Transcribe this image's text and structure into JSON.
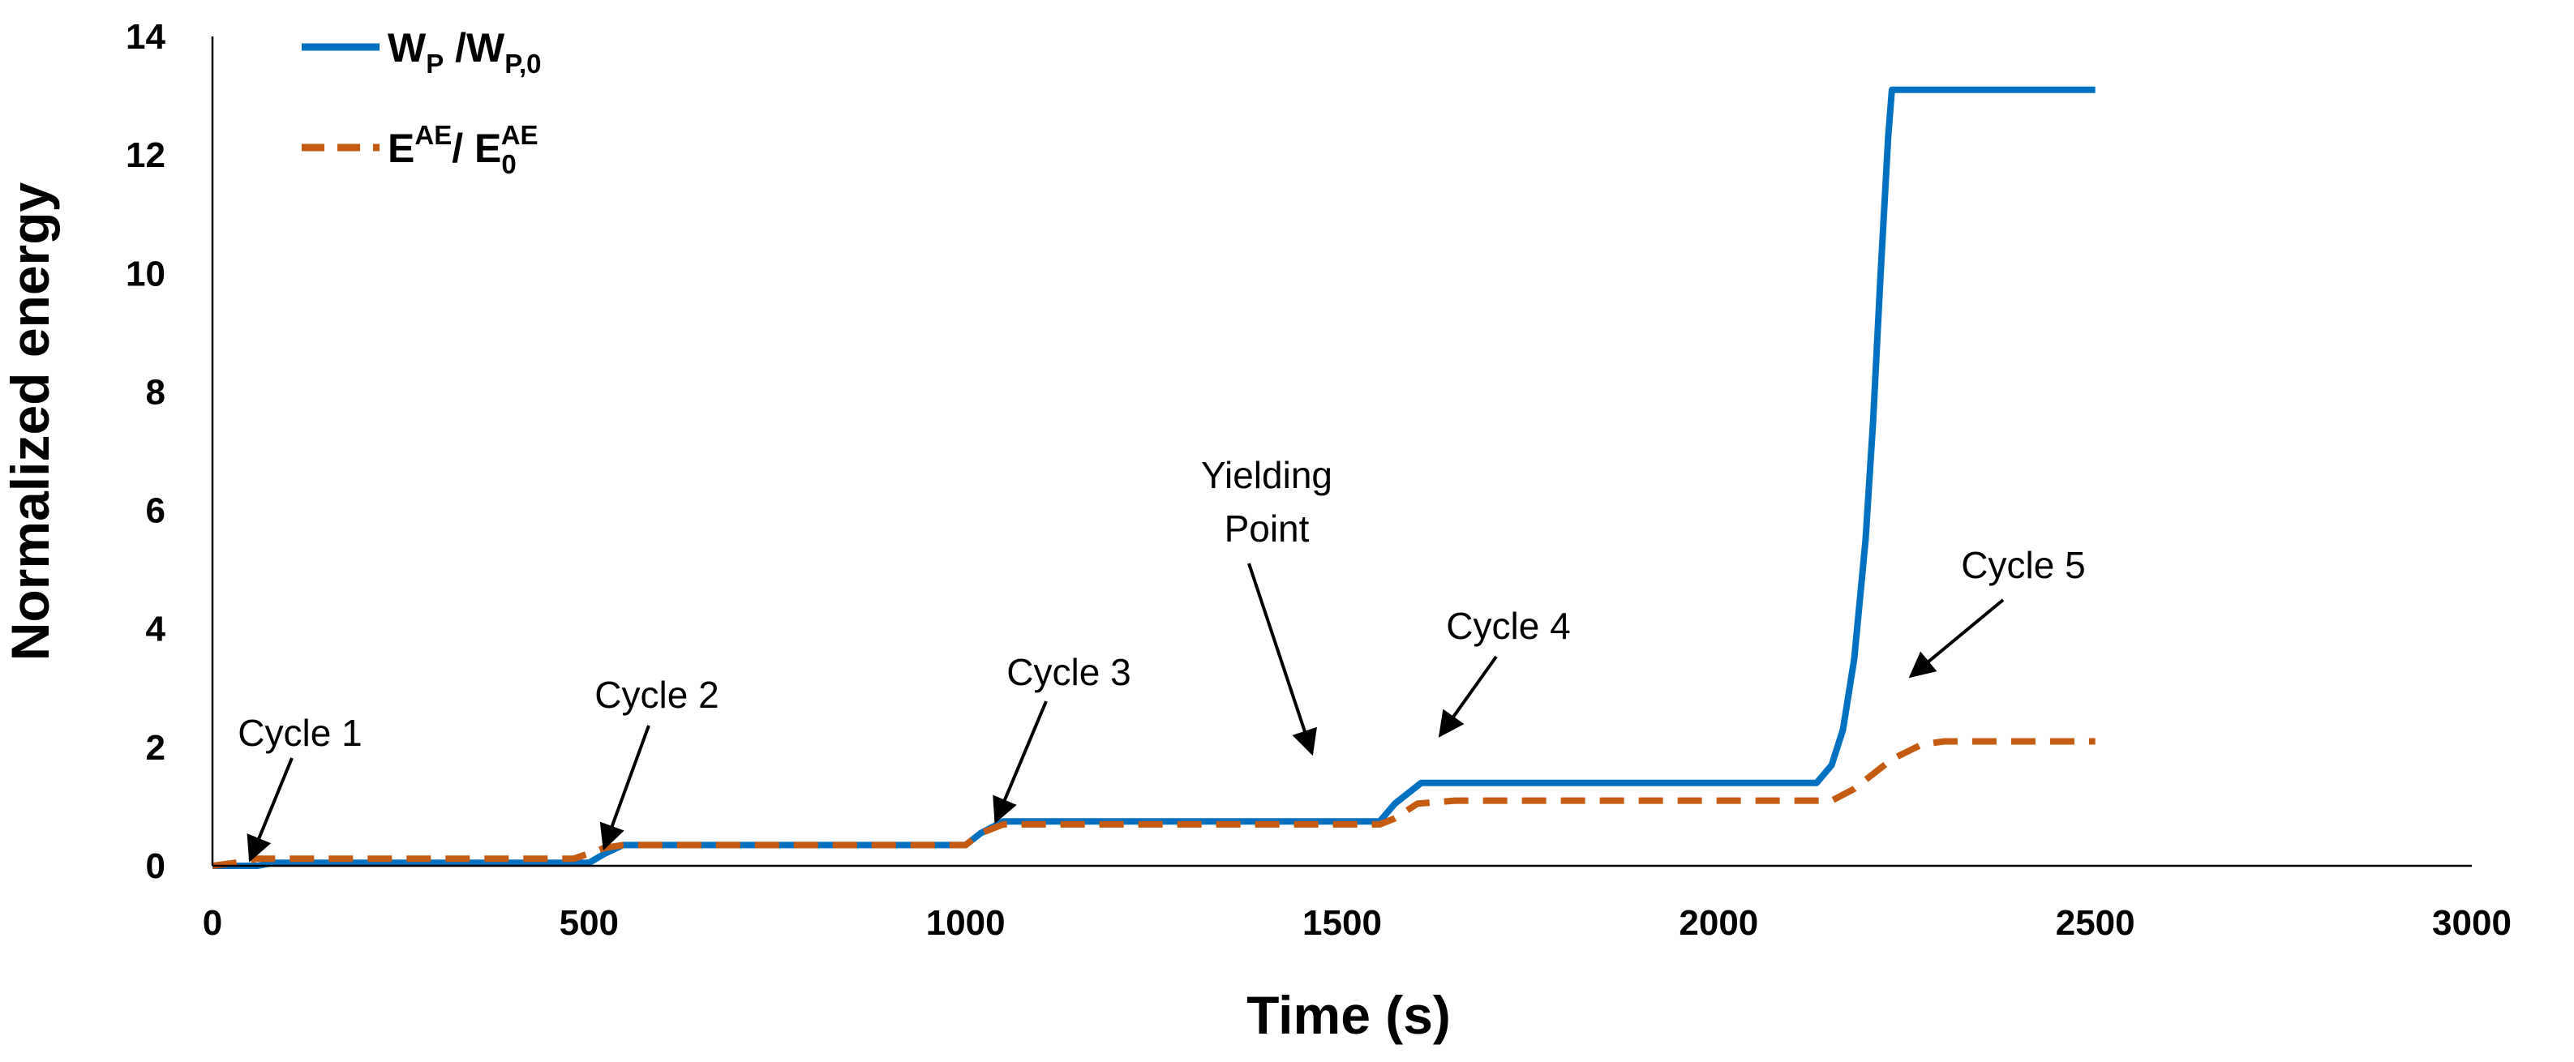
{
  "chart_data": {
    "type": "line",
    "xlabel": "Time (s)",
    "ylabel": "Normalized energy",
    "xlim": [
      0,
      3000
    ],
    "ylim": [
      0,
      14
    ],
    "xticks": [
      0,
      500,
      1000,
      1500,
      2000,
      2500,
      3000
    ],
    "yticks": [
      0,
      2,
      4,
      6,
      8,
      10,
      12,
      14
    ],
    "grid": false,
    "legend_position": "top-left",
    "legend": [
      {
        "main": "W",
        "sub": "P",
        "sep": " /W",
        "sub2": "P,0"
      },
      {
        "main": "E",
        "sup": "AE",
        "sep": "/ E",
        "sub2": "0",
        "sup2": "AE"
      }
    ],
    "series": [
      {
        "color": "#0070C0",
        "style": "solid",
        "x": [
          0,
          60,
          80,
          100,
          500,
          520,
          545,
          1000,
          1020,
          1050,
          1550,
          1570,
          1605,
          2130,
          2150,
          2165,
          2180,
          2195,
          2205,
          2215,
          2225,
          2230,
          2500
        ],
        "y": [
          0,
          0,
          0.05,
          0.05,
          0.05,
          0.2,
          0.35,
          0.35,
          0.55,
          0.75,
          0.75,
          1.05,
          1.4,
          1.4,
          1.7,
          2.3,
          3.5,
          5.5,
          7.5,
          10,
          12.3,
          13.1,
          13.1
        ]
      },
      {
        "color": "#C55A11",
        "style": "dashed",
        "x": [
          0,
          30,
          60,
          100,
          480,
          520,
          545,
          1000,
          1020,
          1050,
          1550,
          1570,
          1600,
          1650,
          2150,
          2180,
          2230,
          2270,
          2300,
          2500
        ],
        "y": [
          0,
          0.05,
          0.12,
          0.12,
          0.12,
          0.3,
          0.35,
          0.35,
          0.55,
          0.7,
          0.7,
          0.8,
          1.05,
          1.1,
          1.1,
          1.3,
          1.8,
          2.05,
          2.1,
          2.1
        ]
      }
    ],
    "annotations": [
      {
        "text": "Cycle 1",
        "arrow_to": [
          50,
          0.1
        ]
      },
      {
        "text": "Cycle 2",
        "arrow_to": [
          520,
          0.3
        ]
      },
      {
        "text": "Cycle 3",
        "arrow_to": [
          1040,
          0.75
        ]
      },
      {
        "text": "Yielding Point",
        "arrow_to": [
          1460,
          1.9
        ]
      },
      {
        "text": "Cycle 4",
        "arrow_to": [
          1630,
          2.2
        ]
      },
      {
        "text": "Cycle 5",
        "arrow_to": [
          2255,
          3.2
        ]
      }
    ]
  }
}
